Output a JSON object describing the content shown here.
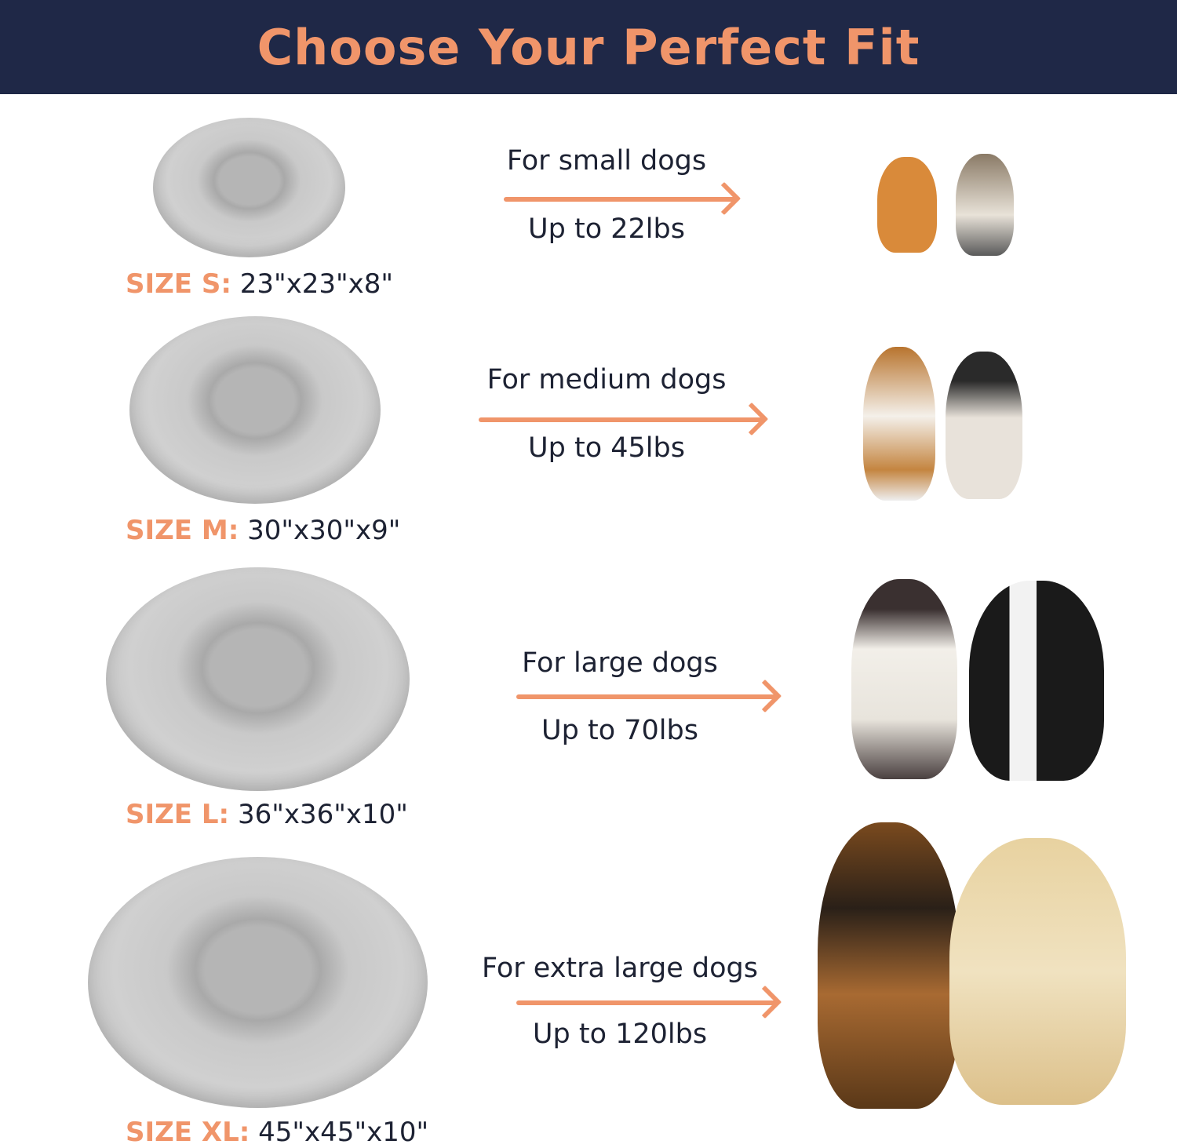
{
  "header": {
    "title": "Choose Your Perfect Fit"
  },
  "colors": {
    "header_bg": "#1f2847",
    "accent": "#f0956a",
    "text": "#1d2233"
  },
  "sizes": [
    {
      "label": "SIZE S:",
      "dimensions": "23\"x23\"x8\"",
      "for": "For small dogs",
      "weight": "Up to 22lbs",
      "dogs": [
        "pomeranian",
        "yorkshire-terrier"
      ]
    },
    {
      "label": "SIZE M:",
      "dimensions": "30\"x30\"x9\"",
      "for": "For medium dogs",
      "weight": "Up to 45lbs",
      "dogs": [
        "beagle",
        "french-bulldog"
      ]
    },
    {
      "label": "SIZE L:",
      "dimensions": "36\"x36\"x10\"",
      "for": "For large dogs",
      "weight": "Up to 70lbs",
      "dogs": [
        "australian-shepherd",
        "border-collie"
      ]
    },
    {
      "label": "SIZE XL:",
      "dimensions": "45\"x45\"x10\"",
      "for": "For extra large dogs",
      "weight": "Up to 120lbs",
      "dogs": [
        "german-shepherd",
        "golden-retriever"
      ]
    }
  ]
}
